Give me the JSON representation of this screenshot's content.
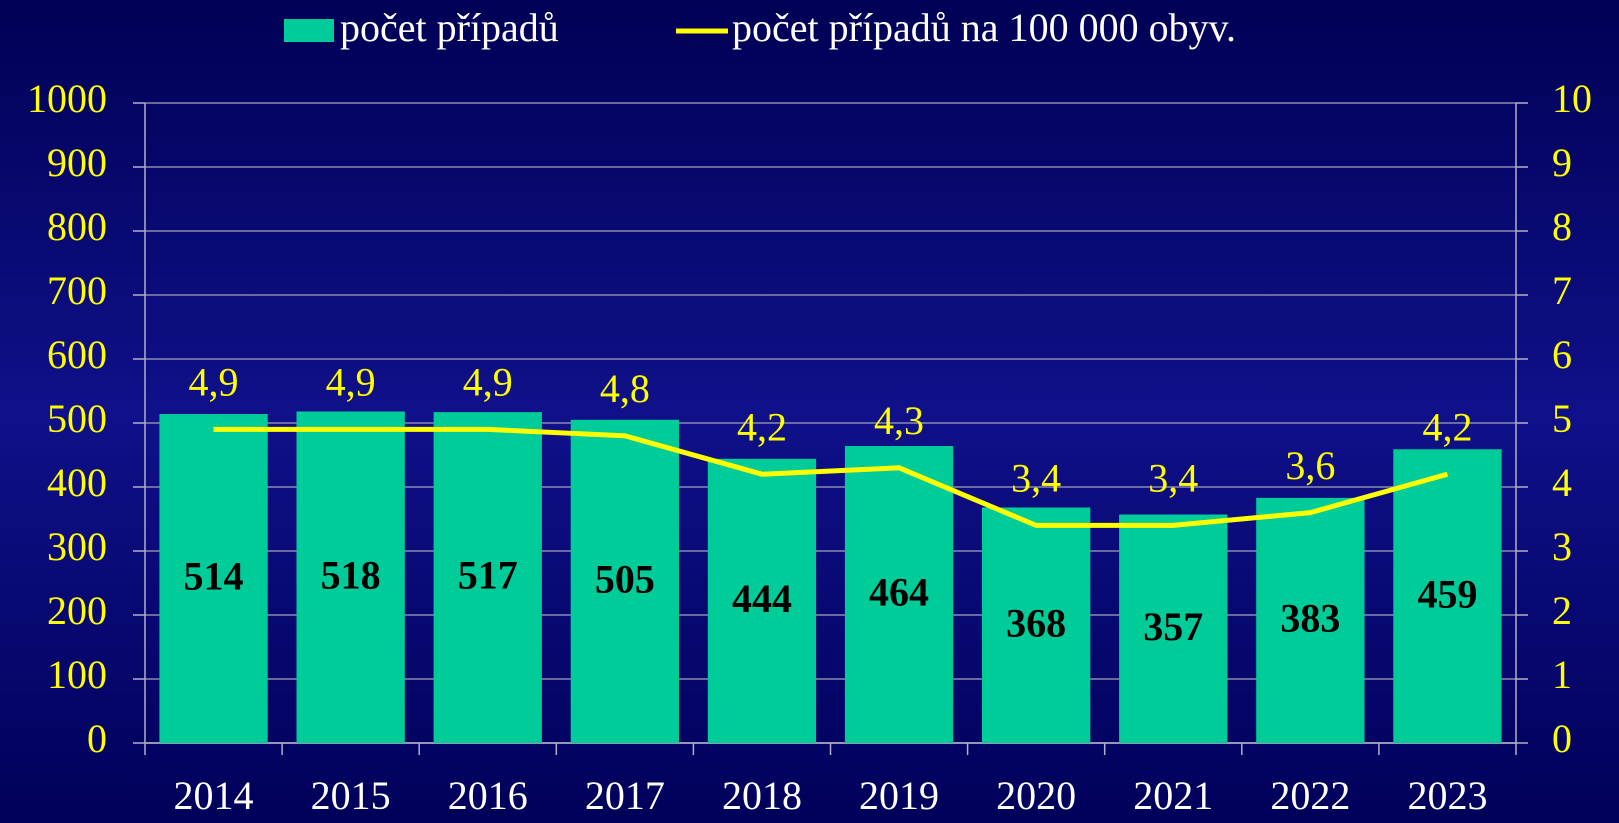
{
  "chart_data": {
    "type": "bar_line",
    "categories": [
      "2014",
      "2015",
      "2016",
      "2017",
      "2018",
      "2019",
      "2020",
      "2021",
      "2022",
      "2023"
    ],
    "series": [
      {
        "name": "počet případů",
        "type": "bar",
        "color": "#00cc99",
        "values": [
          514,
          518,
          517,
          505,
          444,
          464,
          368,
          357,
          383,
          459
        ]
      },
      {
        "name": "počet případů na 100 000 obyv.",
        "type": "line",
        "axis": "y2",
        "color": "#ffff00",
        "values": [
          4.9,
          4.9,
          4.9,
          4.8,
          4.2,
          4.3,
          3.4,
          3.4,
          3.6,
          4.2
        ],
        "value_labels": [
          "4,9",
          "4,9",
          "4,9",
          "4,8",
          "4,2",
          "4,3",
          "3,4",
          "3,4",
          "3,6",
          "4,2"
        ]
      }
    ],
    "ylim": [
      0,
      1000
    ],
    "yticks": [
      0,
      100,
      200,
      300,
      400,
      500,
      600,
      700,
      800,
      900,
      1000
    ],
    "y2lim": [
      0,
      10
    ],
    "y2ticks": [
      0,
      1,
      2,
      3,
      4,
      5,
      6,
      7,
      8,
      9,
      10
    ],
    "grid": true,
    "legend": "top"
  }
}
